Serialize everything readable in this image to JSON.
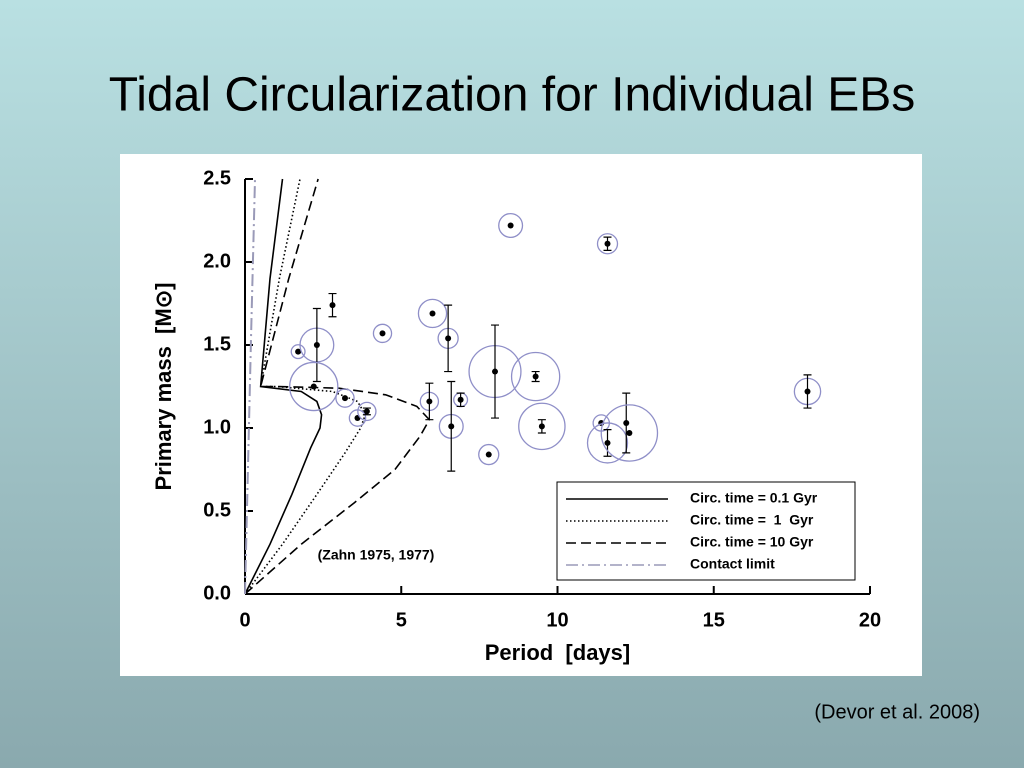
{
  "title": "Tidal Circularization for Individual EBs",
  "citation": "(Devor et al. 2008)",
  "chart_data": {
    "type": "scatter",
    "xlabel": "Period  [days]",
    "ylabel": "Primary mass  [M⊙]",
    "annotation": "(Zahn 1975, 1977)",
    "xlim": [
      0,
      20
    ],
    "xticks": [
      0,
      5,
      10,
      15,
      20
    ],
    "ylim": [
      0,
      2.5
    ],
    "yticks": [
      {
        "value": 0,
        "label": "0.0"
      },
      0.5,
      {
        "value": 1,
        "label": "1.0"
      },
      1.5,
      {
        "value": 2,
        "label": "2.0"
      },
      2.5
    ],
    "legend": "lower right",
    "points": {
      "color": "#000000",
      "circle_color": "#8f8fc8",
      "x": [
        1.7,
        2.3,
        2.8,
        2.2,
        3.2,
        3.6,
        3.9,
        4.4,
        5.9,
        6.0,
        6.5,
        6.6,
        6.9,
        7.8,
        8.0,
        8.5,
        9.3,
        9.5,
        11.4,
        11.6,
        11.6,
        12.2,
        12.3,
        18.0
      ],
      "values": [
        1.46,
        1.5,
        1.74,
        1.25,
        1.18,
        1.06,
        1.1,
        1.57,
        1.16,
        1.69,
        1.54,
        1.01,
        1.17,
        0.84,
        1.34,
        2.22,
        1.31,
        1.01,
        1.03,
        2.11,
        0.91,
        1.03,
        0.97,
        1.22
      ],
      "errors": [
        null,
        0.22,
        0.07,
        null,
        null,
        null,
        0.02,
        null,
        0.11,
        null,
        0.2,
        0.27,
        0.04,
        null,
        0.28,
        null,
        0.03,
        0.04,
        null,
        0.04,
        0.08,
        0.18,
        null,
        0.1
      ],
      "sizes": [
        0.22,
        0.54,
        null,
        0.77,
        0.29,
        0.26,
        0.29,
        0.29,
        0.29,
        0.45,
        0.32,
        0.38,
        0.22,
        0.32,
        0.83,
        0.38,
        0.77,
        0.74,
        0.26,
        0.32,
        0.64,
        null,
        0.9,
        0.42
      ]
    },
    "series": [
      {
        "name": "Circ. time = 0.1 Gyr",
        "color": "#000000",
        "dash": "solid",
        "x": [
          0,
          0.8,
          1.5,
          2.1,
          2.4,
          2.45,
          2.3,
          1.8,
          0.5,
          0.8,
          1.2
        ],
        "values": [
          0,
          0.3,
          0.6,
          0.88,
          1.0,
          1.08,
          1.16,
          1.22,
          1.25,
          1.9,
          2.5
        ]
      },
      {
        "name": "Circ. time =  1  Gyr",
        "color": "#000000",
        "dash": "dotted",
        "x": [
          0,
          1.2,
          2.3,
          3.2,
          3.7,
          3.85,
          3.6,
          2.8,
          1.0,
          0.5,
          1.1,
          1.76
        ],
        "values": [
          0,
          0.3,
          0.6,
          0.85,
          1.0,
          1.08,
          1.16,
          1.22,
          1.25,
          1.25,
          1.9,
          2.5
        ]
      },
      {
        "name": "Circ. time = 10 Gyr",
        "color": "#000000",
        "dash": "dashed",
        "x": [
          0,
          1.8,
          3.5,
          4.8,
          5.6,
          5.9,
          5.5,
          4.5,
          3.0,
          1.0,
          0.5,
          1.4,
          2.34
        ],
        "values": [
          0,
          0.3,
          0.55,
          0.75,
          0.95,
          1.05,
          1.13,
          1.2,
          1.24,
          1.25,
          1.25,
          1.9,
          2.5
        ]
      },
      {
        "name": "Contact limit",
        "color": "#9a9ab8",
        "dash": "dashdot",
        "x": [
          0,
          0.1,
          0.2,
          0.32
        ],
        "values": [
          0,
          0.8,
          1.6,
          2.5
        ]
      }
    ]
  }
}
